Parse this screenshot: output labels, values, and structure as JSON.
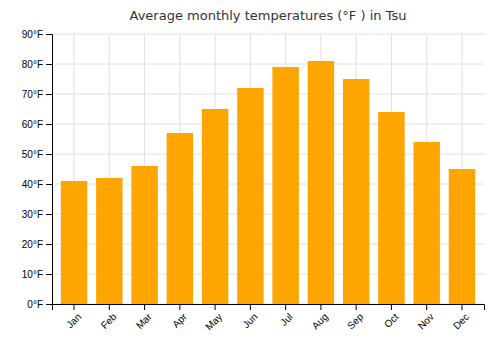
{
  "chart_data": {
    "type": "bar",
    "title": "Average monthly temperatures (°F ) in Tsu",
    "categories": [
      "Jan",
      "Feb",
      "Mar",
      "Apr",
      "May",
      "Jun",
      "Jul",
      "Aug",
      "Sep",
      "Oct",
      "Nov",
      "Dec"
    ],
    "values": [
      41,
      42,
      46,
      57,
      65,
      72,
      79,
      81,
      75,
      64,
      54,
      45
    ],
    "color": "#FFA500",
    "ylim": [
      0,
      90
    ],
    "yticks": [
      {
        "value": 0,
        "label": "0°F"
      },
      {
        "value": 10,
        "label": "10°F"
      },
      {
        "value": 20,
        "label": "20°F"
      },
      {
        "value": 30,
        "label": "30°F"
      },
      {
        "value": 40,
        "label": "40°F"
      },
      {
        "value": 50,
        "label": "50°F"
      },
      {
        "value": 60,
        "label": "60°F"
      },
      {
        "value": 70,
        "label": "70°F"
      },
      {
        "value": 80,
        "label": "80°F"
      },
      {
        "value": 90,
        "label": "90°F"
      }
    ],
    "grid": true
  }
}
